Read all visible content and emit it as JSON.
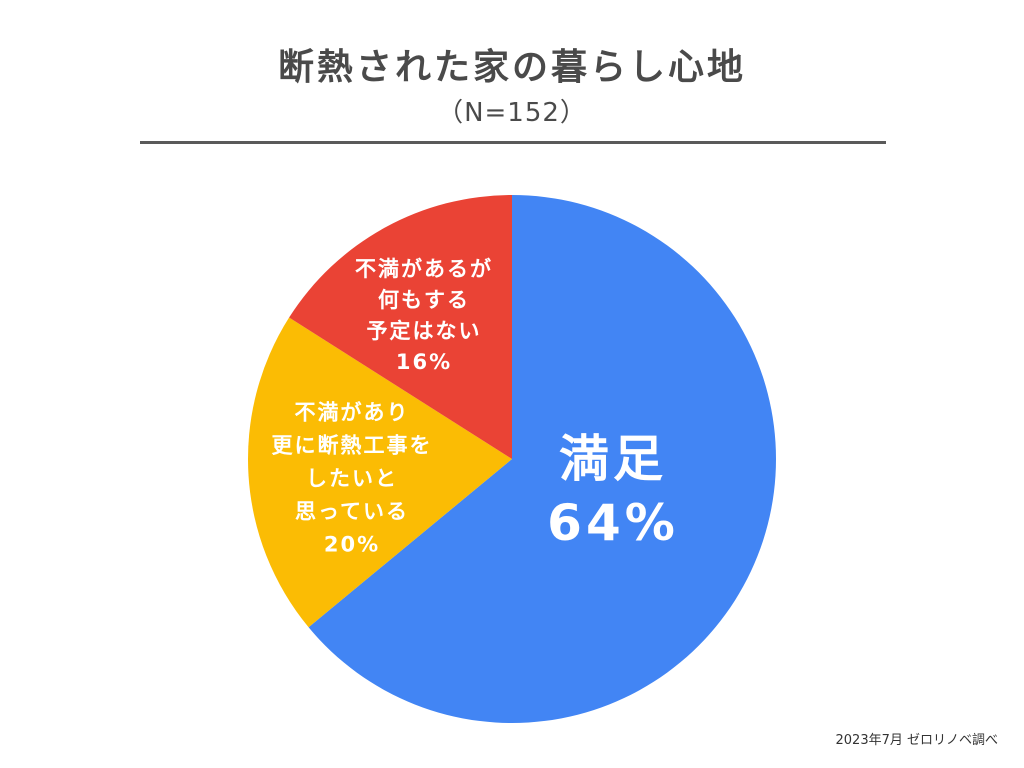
{
  "header": {
    "title": "断熱された家の暮らし心地",
    "subtitle": "（N=152）"
  },
  "footer": {
    "source": "2023年7月 ゼロリノベ調べ"
  },
  "chart_data": {
    "type": "pie",
    "title": "断熱された家の暮らし心地",
    "subtitle": "（N=152）",
    "slices": [
      {
        "label_lines": [
          "満足",
          "64%"
        ],
        "value": 64,
        "color": "#4285f4",
        "label_size": "large"
      },
      {
        "label_lines": [
          "不満があり",
          "更に断熱工事を",
          "したいと",
          "思っている",
          "20%"
        ],
        "value": 20,
        "color": "#fbbc04",
        "label_size": "small"
      },
      {
        "label_lines": [
          "不満があるが",
          "何もする",
          "予定はない",
          "16%"
        ],
        "value": 16,
        "color": "#ea4335",
        "label_size": "small"
      }
    ],
    "start": "12 o'clock",
    "direction": "clockwise",
    "legend": "none",
    "source": "2023年7月 ゼロリノベ調べ"
  }
}
